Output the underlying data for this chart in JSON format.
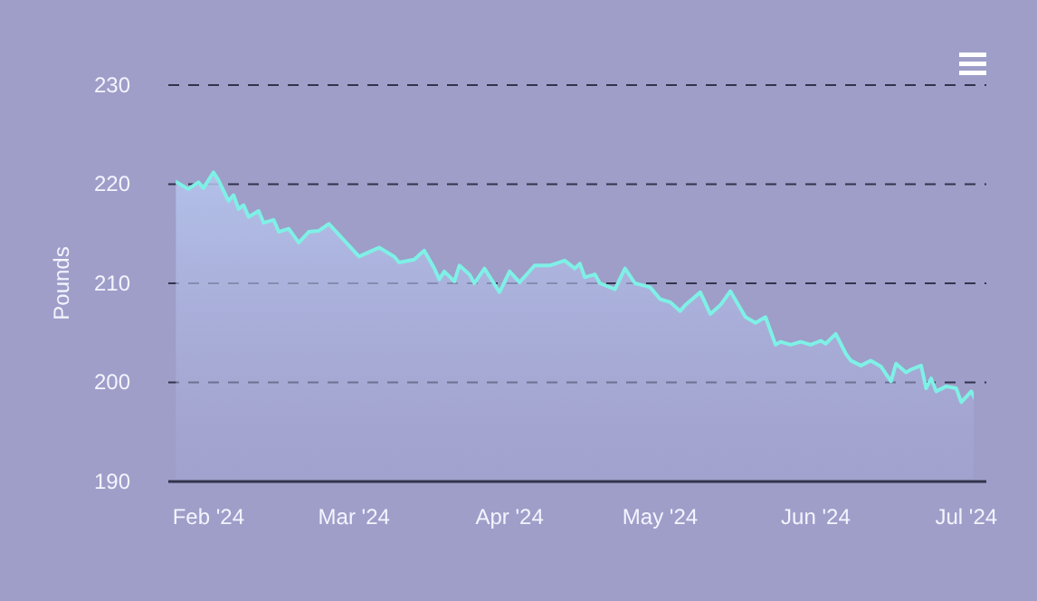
{
  "chart_data": {
    "type": "area",
    "ylabel": "Pounds",
    "x": [
      "2024-01-25",
      "2024-01-28",
      "2024-01-30",
      "2024-01-31",
      "2024-02-02",
      "2024-02-03",
      "2024-02-05",
      "2024-02-06",
      "2024-02-07",
      "2024-02-08",
      "2024-02-09",
      "2024-02-11",
      "2024-02-12",
      "2024-02-14",
      "2024-02-15",
      "2024-02-17",
      "2024-02-19",
      "2024-02-21",
      "2024-02-23",
      "2024-02-25",
      "2024-02-27",
      "2024-03-02",
      "2024-03-06",
      "2024-03-09",
      "2024-03-10",
      "2024-03-13",
      "2024-03-15",
      "2024-03-17",
      "2024-03-18",
      "2024-03-19",
      "2024-03-21",
      "2024-03-22",
      "2024-03-24",
      "2024-03-25",
      "2024-03-27",
      "2024-03-30",
      "2024-04-01",
      "2024-04-03",
      "2024-04-06",
      "2024-04-09",
      "2024-04-12",
      "2024-04-14",
      "2024-04-15",
      "2024-04-16",
      "2024-04-18",
      "2024-04-19",
      "2024-04-22",
      "2024-04-24",
      "2024-04-26",
      "2024-04-29",
      "2024-05-01",
      "2024-05-03",
      "2024-05-05",
      "2024-05-06",
      "2024-05-09",
      "2024-05-11",
      "2024-05-13",
      "2024-05-15",
      "2024-05-18",
      "2024-05-20",
      "2024-05-22",
      "2024-05-24",
      "2024-05-25",
      "2024-05-27",
      "2024-05-29",
      "2024-05-31",
      "2024-06-02",
      "2024-06-03",
      "2024-06-05",
      "2024-06-07",
      "2024-06-08",
      "2024-06-10",
      "2024-06-12",
      "2024-06-14",
      "2024-06-16",
      "2024-06-17",
      "2024-06-19",
      "2024-06-20",
      "2024-06-22",
      "2024-06-23",
      "2024-06-24",
      "2024-06-25",
      "2024-06-27",
      "2024-06-29",
      "2024-06-30",
      "2024-07-02",
      "2024-07-03"
    ],
    "series": [
      {
        "color": "#7ff0e6",
        "values": [
          220.4,
          219.5,
          220.2,
          219.6,
          221.2,
          220.4,
          218.3,
          218.9,
          217.5,
          217.9,
          216.7,
          217.3,
          216.1,
          216.4,
          215.2,
          215.5,
          214.1,
          215.2,
          215.3,
          216.0,
          214.9,
          212.7,
          213.6,
          212.7,
          212.1,
          212.4,
          213.3,
          211.5,
          210.4,
          211.2,
          210.2,
          211.8,
          210.9,
          210.0,
          211.5,
          209.1,
          211.2,
          210.1,
          211.8,
          211.8,
          212.3,
          211.5,
          212.0,
          210.6,
          210.9,
          210.0,
          209.4,
          211.5,
          210.0,
          209.6,
          208.4,
          208.1,
          207.2,
          207.8,
          209.1,
          206.9,
          207.8,
          209.2,
          206.6,
          206.0,
          206.6,
          203.8,
          204.1,
          203.8,
          204.1,
          203.8,
          204.2,
          203.9,
          204.9,
          202.9,
          202.2,
          201.7,
          202.2,
          201.6,
          200.1,
          201.9,
          201.0,
          201.3,
          201.7,
          199.4,
          200.4,
          199.1,
          199.6,
          199.4,
          198.0,
          199.1,
          198.1
        ]
      }
    ],
    "xlim": [
      "2024-01-24",
      "2024-07-05"
    ],
    "xticks": [
      {
        "value": "2024-02-01",
        "label": "Feb '24"
      },
      {
        "value": "2024-03-01",
        "label": "Mar '24"
      },
      {
        "value": "2024-04-01",
        "label": "Apr '24"
      },
      {
        "value": "2024-05-01",
        "label": "May '24"
      },
      {
        "value": "2024-06-01",
        "label": "Jun '24"
      },
      {
        "value": "2024-07-01",
        "label": "Jul '24"
      }
    ],
    "ylim": [
      190,
      230
    ],
    "yticks": [
      190,
      200,
      210,
      220,
      230
    ],
    "grid": "y",
    "line_style": "solid"
  }
}
